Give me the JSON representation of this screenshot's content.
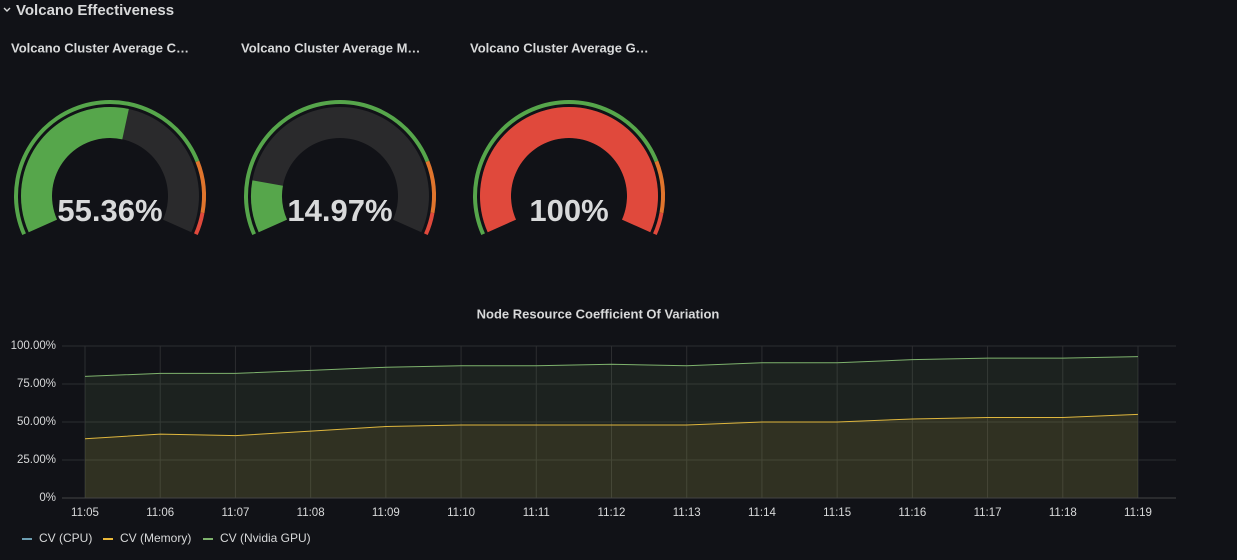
{
  "header": {
    "title": "Volcano Effectiveness"
  },
  "chart_data": [
    {
      "type": "gauge",
      "title": "Volcano Cluster Average C…",
      "value": 55.36,
      "value_label": "55.36%",
      "ylim": [
        0,
        100
      ],
      "thresholds": [
        0,
        80,
        94
      ],
      "threshold_colors": [
        "#56a64b",
        "#e0752d",
        "#e0493c"
      ],
      "track_color": "#2a2a2c"
    },
    {
      "type": "gauge",
      "title": "Volcano Cluster Average M…",
      "value": 14.97,
      "value_label": "14.97%",
      "ylim": [
        0,
        100
      ],
      "thresholds": [
        0,
        80,
        94
      ],
      "threshold_colors": [
        "#56a64b",
        "#e0752d",
        "#e0493c"
      ],
      "track_color": "#2a2a2c"
    },
    {
      "type": "gauge",
      "title": "Volcano Cluster Average G…",
      "value": 100,
      "value_label": "100%",
      "ylim": [
        0,
        100
      ],
      "thresholds": [
        0,
        80,
        94
      ],
      "threshold_colors": [
        "#56a64b",
        "#e0752d",
        "#e0493c"
      ],
      "track_color": "#2a2a2c"
    },
    {
      "type": "line",
      "title": "Node Resource Coefficient Of Variation",
      "categories": [
        "11:05",
        "11:06",
        "11:07",
        "11:08",
        "11:09",
        "11:10",
        "11:11",
        "11:12",
        "11:13",
        "11:14",
        "11:15",
        "11:16",
        "11:17",
        "11:18",
        "11:19"
      ],
      "series": [
        {
          "name": "CV (CPU)",
          "color": "#6d9eb2",
          "values": [
            0,
            0,
            0,
            0,
            0,
            0,
            0,
            0,
            0,
            0,
            0,
            0,
            0,
            0,
            0
          ]
        },
        {
          "name": "CV (Memory)",
          "color": "#eab839",
          "values": [
            39,
            42,
            41,
            44,
            47,
            48,
            48,
            48,
            48,
            50,
            50,
            52,
            53,
            53,
            55
          ]
        },
        {
          "name": "CV (Nvidia GPU)",
          "color": "#7eb26d",
          "values": [
            80,
            82,
            82,
            84,
            86,
            87,
            87,
            88,
            87,
            89,
            89,
            91,
            92,
            92,
            93
          ]
        }
      ],
      "ylim": [
        0,
        100
      ],
      "yticks": [
        {
          "value": 0,
          "label": "0%"
        },
        {
          "value": 25,
          "label": "25.00%"
        },
        {
          "value": 50,
          "label": "50.00%"
        },
        {
          "value": 75,
          "label": "75.00%"
        },
        {
          "value": 100,
          "label": "100.00%"
        }
      ],
      "grid": true
    }
  ]
}
